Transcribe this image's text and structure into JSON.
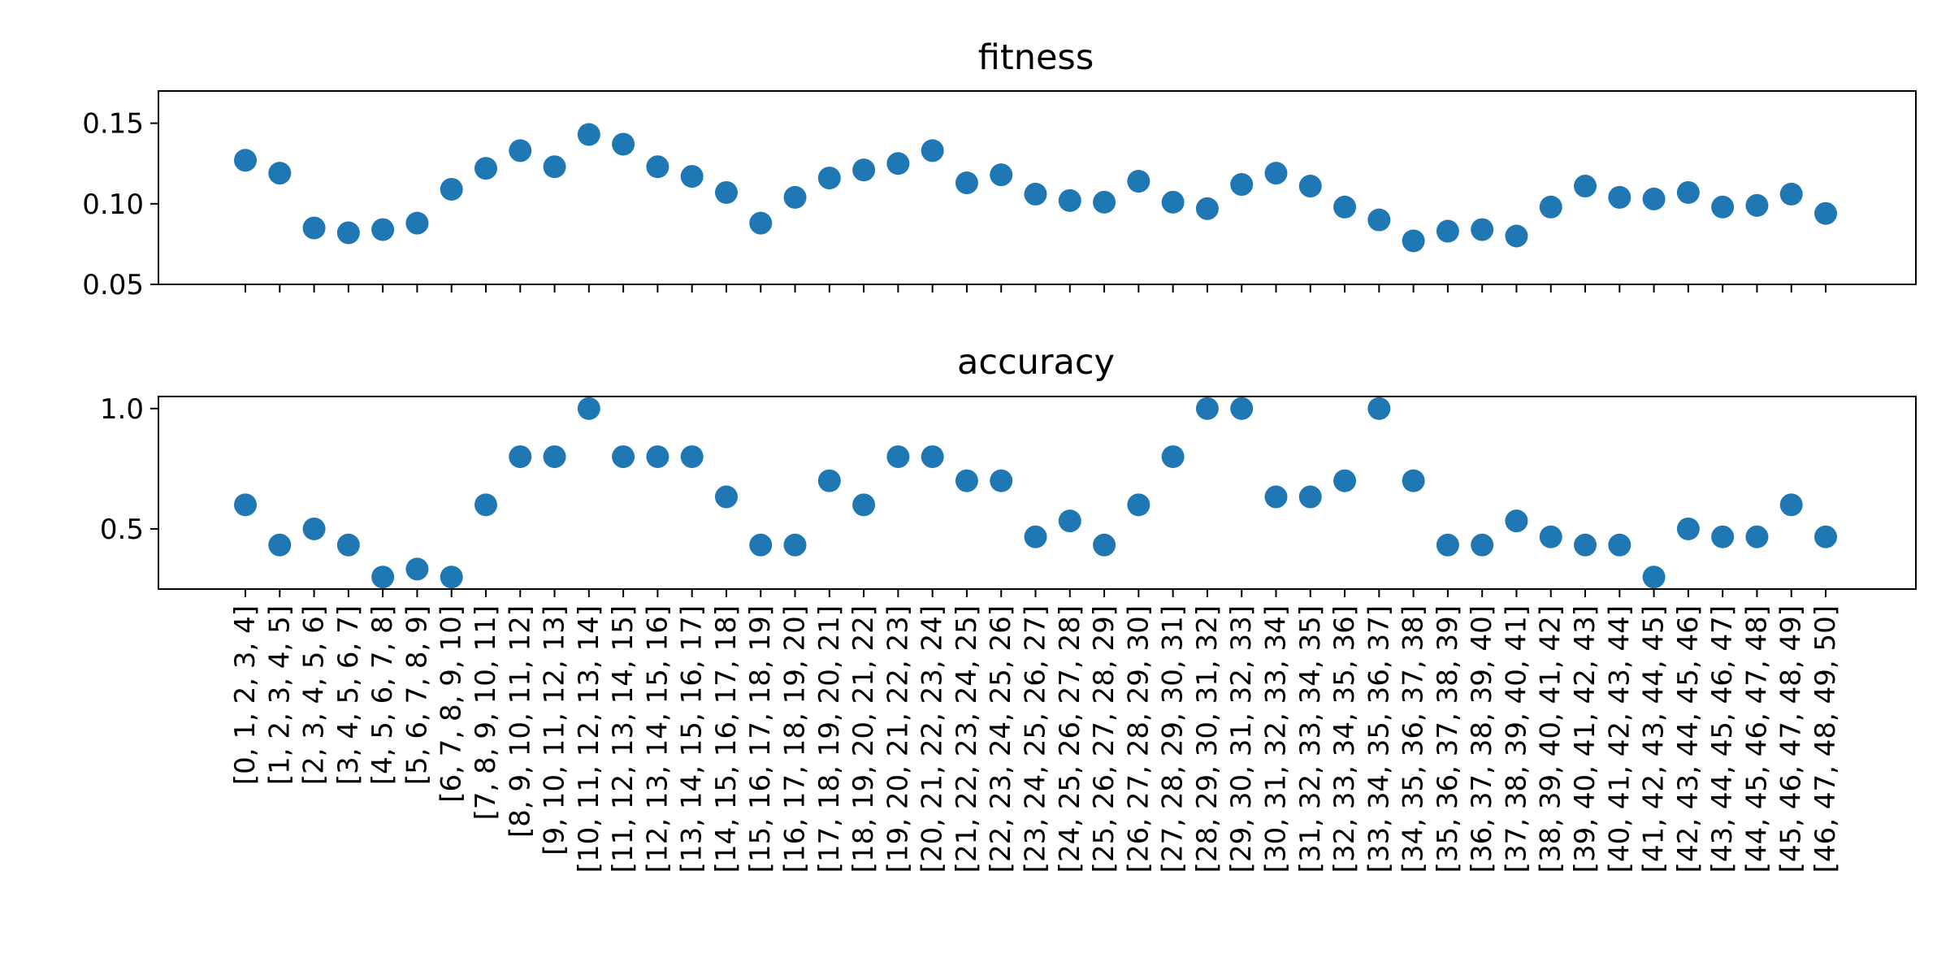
{
  "colors": {
    "marker": "#1f77b4",
    "axes": "#000000",
    "background": "#ffffff"
  },
  "chart_data": {
    "type": "scatter",
    "categories": [
      "[0, 1, 2, 3, 4]",
      "[1, 2, 3, 4, 5]",
      "[2, 3, 4, 5, 6]",
      "[3, 4, 5, 6, 7]",
      "[4, 5, 6, 7, 8]",
      "[5, 6, 7, 8, 9]",
      "[6, 7, 8, 9, 10]",
      "[7, 8, 9, 10, 11]",
      "[8, 9, 10, 11, 12]",
      "[9, 10, 11, 12, 13]",
      "[10, 11, 12, 13, 14]",
      "[11, 12, 13, 14, 15]",
      "[12, 13, 14, 15, 16]",
      "[13, 14, 15, 16, 17]",
      "[14, 15, 16, 17, 18]",
      "[15, 16, 17, 18, 19]",
      "[16, 17, 18, 19, 20]",
      "[17, 18, 19, 20, 21]",
      "[18, 19, 20, 21, 22]",
      "[19, 20, 21, 22, 23]",
      "[20, 21, 22, 23, 24]",
      "[21, 22, 23, 24, 25]",
      "[22, 23, 24, 25, 26]",
      "[23, 24, 25, 26, 27]",
      "[24, 25, 26, 27, 28]",
      "[25, 26, 27, 28, 29]",
      "[26, 27, 28, 29, 30]",
      "[27, 28, 29, 30, 31]",
      "[28, 29, 30, 31, 32]",
      "[29, 30, 31, 32, 33]",
      "[30, 31, 32, 33, 34]",
      "[31, 32, 33, 34, 35]",
      "[32, 33, 34, 35, 36]",
      "[33, 34, 35, 36, 37]",
      "[34, 35, 36, 37, 38]",
      "[35, 36, 37, 38, 39]",
      "[36, 37, 38, 39, 40]",
      "[37, 38, 39, 40, 41]",
      "[38, 39, 40, 41, 42]",
      "[39, 40, 41, 42, 43]",
      "[40, 41, 42, 43, 44]",
      "[41, 42, 43, 44, 45]",
      "[42, 43, 44, 45, 46]",
      "[43, 44, 45, 46, 47]",
      "[44, 45, 46, 47, 48]",
      "[45, 46, 47, 48, 49]",
      "[46, 47, 48, 49, 50]"
    ],
    "panels": [
      {
        "title": "fitness",
        "ylim": [
          0.05,
          0.17
        ],
        "yticks": [
          0.05,
          0.1,
          0.15
        ],
        "ytick_labels": [
          "0.05",
          "0.10",
          "0.15"
        ],
        "show_xtick_labels": false,
        "values": [
          0.127,
          0.119,
          0.085,
          0.082,
          0.084,
          0.088,
          0.109,
          0.122,
          0.133,
          0.123,
          0.143,
          0.137,
          0.123,
          0.117,
          0.107,
          0.088,
          0.104,
          0.116,
          0.121,
          0.125,
          0.133,
          0.113,
          0.118,
          0.106,
          0.102,
          0.101,
          0.114,
          0.101,
          0.097,
          0.112,
          0.119,
          0.111,
          0.098,
          0.09,
          0.077,
          0.083,
          0.084,
          0.08,
          0.098,
          0.111,
          0.104,
          0.103,
          0.107,
          0.098,
          0.099,
          0.106,
          0.094
        ]
      },
      {
        "title": "accuracy",
        "ylim": [
          0.25,
          1.05
        ],
        "yticks": [
          0.5,
          1.0
        ],
        "ytick_labels": [
          "0.5",
          "1.0"
        ],
        "show_xtick_labels": true,
        "values": [
          0.6,
          0.433,
          0.5,
          0.433,
          0.3,
          0.333,
          0.3,
          0.6,
          0.8,
          0.8,
          1.0,
          0.8,
          0.8,
          0.8,
          0.633,
          0.433,
          0.433,
          0.7,
          0.6,
          0.8,
          0.8,
          0.7,
          0.7,
          0.467,
          0.533,
          0.433,
          0.6,
          0.8,
          1.0,
          1.0,
          0.633,
          0.633,
          0.7,
          1.0,
          0.7,
          0.433,
          0.433,
          0.533,
          0.467,
          0.433,
          0.433,
          0.3,
          0.5,
          0.467,
          0.467,
          0.6,
          0.467
        ]
      }
    ],
    "grid": false,
    "legend": "none"
  }
}
